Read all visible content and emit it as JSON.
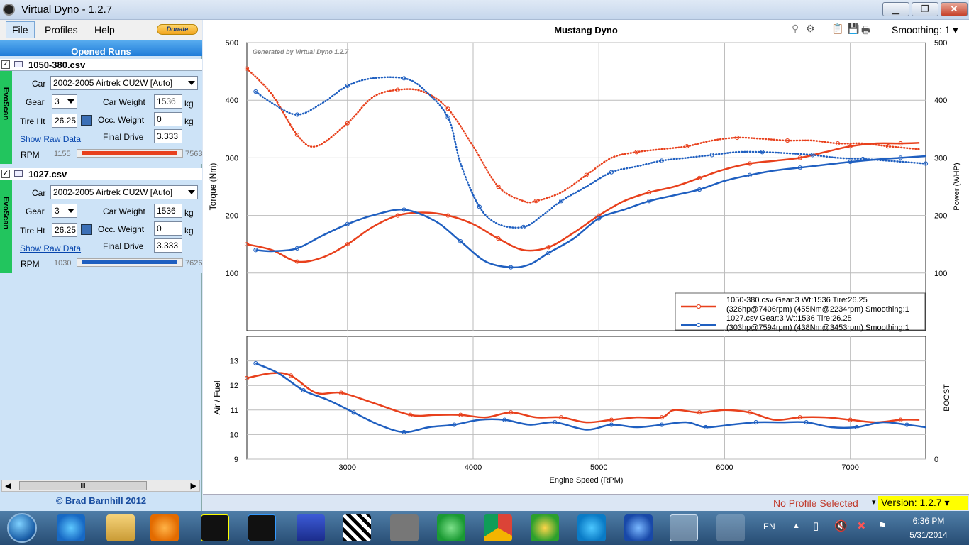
{
  "window": {
    "title": "Virtual Dyno - 1.2.7",
    "minimize": "▁",
    "maximize": "❐",
    "close": "✕"
  },
  "menu": {
    "file": "File",
    "profiles": "Profiles",
    "help": "Help",
    "donate": "Donate"
  },
  "opened_runs_label": "Opened Runs",
  "runs": [
    {
      "file": "1050-380.csv",
      "strip": "EvoScan",
      "car_label": "Car",
      "car": "2002-2005 Airtrek CU2W [Auto]",
      "gear_label": "Gear",
      "gear": "3",
      "car_weight_label": "Car Weight",
      "car_weight": "1536",
      "car_weight_unit": "kg",
      "tire_label": "Tire Ht",
      "tire": "26.25",
      "occ_weight_label": "Occ. Weight",
      "occ_weight": "0",
      "occ_weight_unit": "kg",
      "raw_data_link": "Show Raw Data",
      "final_drive_label": "Final Drive",
      "final_drive": "3.333",
      "rpm_label": "RPM",
      "rpm_min": "1155",
      "rpm_max": "7563",
      "color": "#e8401c"
    },
    {
      "file": "1027.csv",
      "strip": "EvoScan",
      "car_label": "Car",
      "car": "2002-2005 Airtrek CU2W [Auto]",
      "gear_label": "Gear",
      "gear": "3",
      "car_weight_label": "Car Weight",
      "car_weight": "1536",
      "car_weight_unit": "kg",
      "tire_label": "Tire Ht",
      "tire": "26.25",
      "occ_weight_label": "Occ. Weight",
      "occ_weight": "0",
      "occ_weight_unit": "kg",
      "raw_data_link": "Show Raw Data",
      "final_drive_label": "Final Drive",
      "final_drive": "3.333",
      "rpm_label": "RPM",
      "rpm_min": "1030",
      "rpm_max": "7626",
      "color": "#1f5fc0"
    }
  ],
  "scroll_thumb_label": "III",
  "copyright": "© Brad Barnhill 2012",
  "toolbar": {
    "smoothing": "Smoothing: 1"
  },
  "status": {
    "profile": "No Profile Selected",
    "version": "Version: 1.2.7"
  },
  "tray": {
    "lang": "EN",
    "time": "6:36 PM",
    "date": "5/31/2014"
  },
  "chart_data": [
    {
      "type": "line",
      "title": "Mustang Dyno",
      "watermark": "Generated by Virtual Dyno 1.2.7",
      "xlabel": "Engine Speed (RPM)",
      "ylabel": "Torque (Nm)",
      "y2label": "Power (WHP)",
      "xlim": [
        2200,
        7600
      ],
      "ylim": [
        0,
        500
      ],
      "y2lim": [
        0,
        500
      ],
      "xticks": [
        3000,
        4000,
        5000,
        6000,
        7000
      ],
      "yticks": [
        100,
        200,
        300,
        400,
        500
      ],
      "grid": true,
      "legend_position": "bottom-right",
      "legend": [
        {
          "line1": "1050-380.csv Gear:3 Wt:1536 Tire:26.25",
          "line2": "(326hp@7406rpm) (455Nm@2234rpm) Smoothing:1",
          "color": "#e8401c"
        },
        {
          "line1": "1027.csv Gear:3 Wt:1536 Tire:26.25",
          "line2": "(303hp@7594rpm) (438Nm@3453rpm) Smoothing:1",
          "color": "#1f5fc0"
        }
      ],
      "series": [
        {
          "run": "1050-380.csv",
          "measure": "power",
          "style": "solid",
          "color": "#e8401c",
          "x": [
            2200,
            2400,
            2600,
            2800,
            3000,
            3200,
            3400,
            3600,
            3800,
            4000,
            4200,
            4400,
            4600,
            4800,
            5000,
            5200,
            5400,
            5600,
            5800,
            6000,
            6200,
            6400,
            6600,
            6800,
            7000,
            7200,
            7400,
            7550
          ],
          "y": [
            150,
            140,
            120,
            127,
            150,
            180,
            200,
            205,
            200,
            185,
            160,
            140,
            145,
            170,
            200,
            225,
            240,
            250,
            265,
            280,
            290,
            295,
            300,
            310,
            320,
            325,
            325,
            326
          ]
        },
        {
          "run": "1050-380.csv",
          "measure": "torque",
          "style": "dotted",
          "color": "#e8401c",
          "x": [
            2200,
            2400,
            2600,
            2750,
            3000,
            3200,
            3400,
            3600,
            3800,
            4000,
            4200,
            4400,
            4500,
            4700,
            4900,
            5100,
            5300,
            5500,
            5700,
            5900,
            6100,
            6300,
            6500,
            6700,
            6900,
            7100,
            7300,
            7550
          ],
          "y": [
            455,
            410,
            340,
            320,
            360,
            405,
            418,
            415,
            385,
            320,
            250,
            225,
            225,
            240,
            270,
            300,
            310,
            315,
            320,
            330,
            335,
            333,
            330,
            330,
            325,
            325,
            320,
            315
          ]
        },
        {
          "run": "1027.csv",
          "measure": "power",
          "style": "solid",
          "color": "#1f5fc0",
          "x": [
            2270,
            2400,
            2600,
            2800,
            3000,
            3200,
            3450,
            3700,
            3900,
            4100,
            4300,
            4450,
            4600,
            4800,
            5000,
            5200,
            5400,
            5600,
            5800,
            6000,
            6200,
            6400,
            6600,
            6800,
            7000,
            7200,
            7400,
            7600
          ],
          "y": [
            140,
            138,
            143,
            165,
            185,
            200,
            210,
            190,
            155,
            120,
            110,
            115,
            135,
            160,
            195,
            210,
            225,
            235,
            245,
            260,
            270,
            278,
            283,
            288,
            293,
            297,
            300,
            303
          ]
        },
        {
          "run": "1027.csv",
          "measure": "torque",
          "style": "dotted",
          "color": "#1f5fc0",
          "x": [
            2270,
            2400,
            2600,
            2800,
            3000,
            3200,
            3450,
            3600,
            3800,
            3900,
            4050,
            4200,
            4400,
            4550,
            4700,
            4900,
            5100,
            5300,
            5500,
            5700,
            5900,
            6100,
            6300,
            6500,
            6700,
            6900,
            7100,
            7300,
            7600
          ],
          "y": [
            415,
            395,
            375,
            395,
            425,
            438,
            438,
            420,
            370,
            290,
            215,
            185,
            180,
            200,
            225,
            250,
            275,
            285,
            295,
            300,
            305,
            310,
            310,
            308,
            305,
            300,
            298,
            295,
            290
          ]
        }
      ]
    },
    {
      "type": "line",
      "xlabel": "",
      "ylabel": "Air / Fuel",
      "y2label": "BOOST",
      "xlim": [
        2200,
        7600
      ],
      "ylim": [
        9,
        14
      ],
      "yticks": [
        9,
        10,
        11,
        12,
        13
      ],
      "y2ticks": [
        0
      ],
      "grid": true,
      "series": [
        {
          "run": "1050-380.csv",
          "color": "#e8401c",
          "x": [
            2200,
            2400,
            2550,
            2750,
            2950,
            3200,
            3500,
            3700,
            3900,
            4100,
            4300,
            4500,
            4700,
            4900,
            5100,
            5300,
            5500,
            5600,
            5800,
            6000,
            6200,
            6400,
            6600,
            6800,
            7000,
            7200,
            7400,
            7550
          ],
          "y": [
            12.3,
            12.5,
            12.4,
            11.7,
            11.7,
            11.3,
            10.8,
            10.8,
            10.8,
            10.7,
            10.9,
            10.7,
            10.7,
            10.5,
            10.6,
            10.7,
            10.7,
            11.0,
            10.9,
            11.0,
            10.9,
            10.6,
            10.7,
            10.7,
            10.6,
            10.5,
            10.6,
            10.6
          ]
        },
        {
          "run": "1027.csv",
          "color": "#1f5fc0",
          "x": [
            2270,
            2450,
            2650,
            2850,
            3050,
            3250,
            3450,
            3650,
            3850,
            4050,
            4250,
            4450,
            4650,
            4900,
            5100,
            5300,
            5500,
            5700,
            5850,
            6050,
            6250,
            6450,
            6650,
            6850,
            7050,
            7250,
            7450,
            7600
          ],
          "y": [
            12.9,
            12.5,
            11.8,
            11.4,
            10.9,
            10.4,
            10.1,
            10.3,
            10.4,
            10.6,
            10.6,
            10.4,
            10.5,
            10.2,
            10.4,
            10.3,
            10.4,
            10.5,
            10.3,
            10.4,
            10.5,
            10.5,
            10.5,
            10.3,
            10.3,
            10.5,
            10.4,
            10.3
          ]
        }
      ]
    }
  ]
}
